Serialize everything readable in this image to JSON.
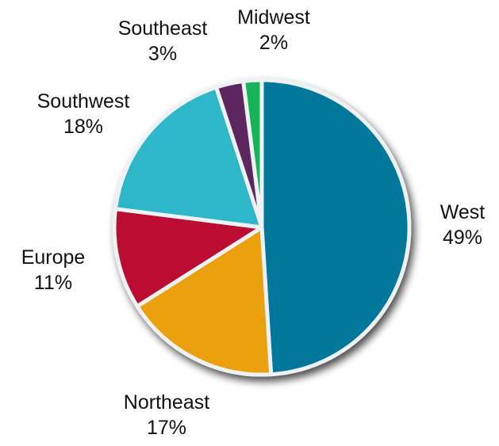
{
  "chart_data": {
    "type": "pie",
    "start": "top",
    "direction": "clockwise",
    "slices": [
      {
        "label": "West",
        "value": 49,
        "value_label": "49%",
        "color": "#00779b"
      },
      {
        "label": "Northeast",
        "value": 17,
        "value_label": "17%",
        "color": "#eba10d"
      },
      {
        "label": "Europe",
        "value": 11,
        "value_label": "11%",
        "color": "#bb0d30"
      },
      {
        "label": "Southwest",
        "value": 18,
        "value_label": "18%",
        "color": "#2db7c9"
      },
      {
        "label": "Southeast",
        "value": 3,
        "value_label": "3%",
        "color": "#5b2660"
      },
      {
        "label": "Midwest",
        "value": 2,
        "value_label": "2%",
        "color": "#16b359"
      }
    ]
  }
}
